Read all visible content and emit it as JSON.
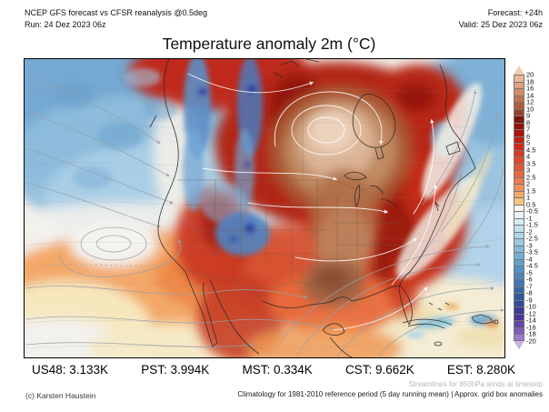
{
  "header": {
    "model_line1": "NCEP GFS forecast vs CFSR reanalysis @0.5deg",
    "model_line2": "Run: 24 Dez 2023 06z",
    "forecast_line1": "Forecast: +24h",
    "forecast_line2": "Valid: 25 Dez 2023 06z",
    "title": "Temperature anomaly 2m (°C)"
  },
  "map": {
    "region": "North America",
    "frame_color": "#000000"
  },
  "colorbar": {
    "unit": "°C",
    "labels": [
      "20",
      "18",
      "16",
      "14",
      "12",
      "10",
      "9",
      "8",
      "7",
      "6",
      "5",
      "4.5",
      "4",
      "3.5",
      "3",
      "2.5",
      "2",
      "1.5",
      "1",
      "0.5",
      "-0.5",
      "-1",
      "-1.5",
      "-2",
      "-2.5",
      "-3",
      "-3.5",
      "-4",
      "-4.5",
      "-5",
      "-6",
      "-7",
      "-8",
      "-9",
      "-10",
      "-12",
      "-14",
      "-16",
      "-18",
      "-20"
    ],
    "colors": [
      "#f2cdb3",
      "#ecb796",
      "#e0a17f",
      "#d28a66",
      "#c27450",
      "#ad5c3d",
      "#93422b",
      "#7c150b",
      "#930f0a",
      "#ab150e",
      "#c01f13",
      "#cd2b1a",
      "#d73a23",
      "#e0482c",
      "#e65836",
      "#ec6940",
      "#f07b4a",
      "#f39055",
      "#f6a965",
      "#f9c47e",
      "#fbf8ef",
      "#e8f2f8",
      "#d7eaf4",
      "#c3e0ee",
      "#aed4e8",
      "#9ac8e2",
      "#86bcda",
      "#72aed3",
      "#61a0cb",
      "#5492c3",
      "#4a84ba",
      "#4076b1",
      "#3867a8",
      "#31589f",
      "#324a9b",
      "#3a3b94",
      "#4c359b",
      "#6244ab",
      "#7d5cbd",
      "#9a7ccf",
      "#c9b2e6"
    ]
  },
  "stats": [
    {
      "region": "US48",
      "value": "3.133K",
      "text": "US48: 3.133K"
    },
    {
      "region": "PST",
      "value": "3.994K",
      "text": "PST: 3.994K"
    },
    {
      "region": "MST",
      "value": "0.334K",
      "text": "MST: 0.334K"
    },
    {
      "region": "CST",
      "value": "9.662K",
      "text": "CST: 9.662K"
    },
    {
      "region": "EST",
      "value": "8.280K",
      "text": "EST: 8.280K"
    }
  ],
  "footer": {
    "credit": "(c) Karsten Haustein",
    "note_streamlines": "Streamlines for 850hPa winds at timestep",
    "note_streamlines_color": "#b9b9b9",
    "note_climatology": "Climatology for 1981-2010 reference period (5 day running mean) | Approx. grid box anomalies"
  }
}
